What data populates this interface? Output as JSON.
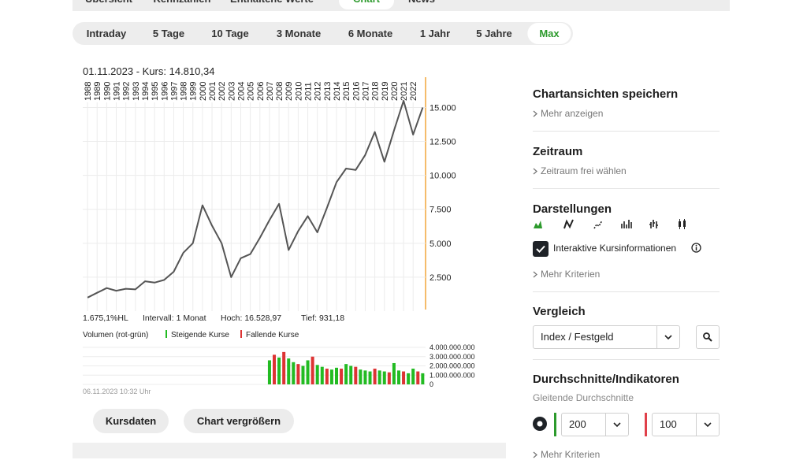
{
  "top_tabs": [
    {
      "label": "Übersicht"
    },
    {
      "label": "Kennzahlen"
    },
    {
      "label": "Enthaltene Werte"
    },
    {
      "label": "Chart",
      "active": true
    },
    {
      "label": "News"
    }
  ],
  "range_tabs": [
    {
      "label": "Intraday"
    },
    {
      "label": "5 Tage"
    },
    {
      "label": "10 Tage"
    },
    {
      "label": "3 Monate"
    },
    {
      "label": "6 Monate"
    },
    {
      "label": "1 Jahr"
    },
    {
      "label": "5 Jahre"
    },
    {
      "label": "Max",
      "active": true
    }
  ],
  "chart_data": [
    {
      "type": "line",
      "title": "01.11.2023  -  Kurs: 14.810,34",
      "x": [
        1988,
        1989,
        1990,
        1991,
        1992,
        1993,
        1994,
        1995,
        1996,
        1997,
        1998,
        1999,
        2000,
        2001,
        2002,
        2003,
        2004,
        2005,
        2006,
        2007,
        2008,
        2009,
        2010,
        2011,
        2012,
        2013,
        2014,
        2015,
        2016,
        2017,
        2018,
        2019,
        2020,
        2021,
        2022,
        2023
      ],
      "values": [
        1000,
        1350,
        1700,
        1500,
        1650,
        1600,
        2200,
        2100,
        2300,
        2900,
        4300,
        5000,
        7800,
        6300,
        5000,
        2500,
        3900,
        4200,
        5400,
        6700,
        7900,
        4500,
        5900,
        7000,
        5800,
        7600,
        9500,
        10500,
        10400,
        11500,
        13200,
        11000,
        13300,
        15500,
        13000,
        15000
      ],
      "color": "#555555",
      "xlim": [
        1987.5,
        2023.3
      ],
      "xticks": [
        1988,
        1989,
        1990,
        1991,
        1992,
        1993,
        1994,
        1995,
        1996,
        1997,
        1998,
        1999,
        2000,
        2001,
        2002,
        2003,
        2004,
        2005,
        2006,
        2007,
        2008,
        2009,
        2010,
        2011,
        2012,
        2013,
        2014,
        2015,
        2016,
        2017,
        2018,
        2019,
        2020,
        2021,
        2022
      ],
      "ylim": [
        0,
        17000
      ],
      "yticks": [
        {
          "value": 2500,
          "label": "2.500"
        },
        {
          "value": 5000,
          "label": "5.000"
        },
        {
          "value": 7500,
          "label": "7.500"
        },
        {
          "value": 10000,
          "label": "10.000"
        },
        {
          "value": 12500,
          "label": "12.500"
        },
        {
          "value": 15000,
          "label": "15.000"
        }
      ],
      "grid": true,
      "stats": [
        "1.675,1%HL",
        "Intervall: 1 Monat",
        "Hoch: 16.528,97",
        "Tief: 931,18"
      ]
    },
    {
      "type": "bar",
      "title": "Volumen (rot-grün)",
      "x": [
        2007.0,
        2007.5,
        2008.0,
        2008.5,
        2009.0,
        2009.5,
        2010.0,
        2010.5,
        2011.0,
        2011.5,
        2012.0,
        2012.5,
        2013.0,
        2013.5,
        2014.0,
        2014.5,
        2015.0,
        2015.5,
        2016.0,
        2016.5,
        2017.0,
        2017.5,
        2018.0,
        2018.5,
        2019.0,
        2019.5,
        2020.0,
        2020.5,
        2021.0,
        2021.5,
        2022.0,
        2022.5,
        2023.0
      ],
      "series": [
        {
          "name": "Steigende Kurse",
          "color": "#22bb22",
          "values": [
            2600000000,
            null,
            2900000000,
            null,
            2800000000,
            2400000000,
            null,
            2000000000,
            2600000000,
            null,
            2100000000,
            1900000000,
            null,
            1600000000,
            1800000000,
            null,
            2200000000,
            2000000000,
            null,
            1600000000,
            1500000000,
            1400000000,
            null,
            1500000000,
            1400000000,
            null,
            2300000000,
            1500000000,
            null,
            1200000000,
            1700000000,
            null,
            1200000000
          ]
        },
        {
          "name": "Fallende Kurse",
          "color": "#dd3333",
          "values": [
            null,
            3200000000,
            null,
            3500000000,
            null,
            null,
            2200000000,
            null,
            null,
            3000000000,
            null,
            null,
            1700000000,
            null,
            null,
            1700000000,
            null,
            null,
            1900000000,
            null,
            null,
            null,
            1700000000,
            null,
            null,
            1300000000,
            null,
            null,
            1400000000,
            null,
            null,
            1400000000,
            null
          ]
        }
      ],
      "xlim": [
        1987.5,
        2023.3
      ],
      "ylim": [
        0,
        4000000000
      ],
      "yticks": [
        0,
        {
          "value": 1000000000,
          "label": "1.000.000.000"
        },
        {
          "value": 2000000000,
          "label": "2.000.000.000"
        },
        {
          "value": 3000000000,
          "label": "3.000.000.000"
        },
        {
          "value": 4000000000,
          "label": "4.000.000.000"
        }
      ],
      "grid": true
    }
  ],
  "timestamp": "06.11.2023 10:32 Uhr",
  "buttons": [
    "Kursdaten",
    "Chart vergrößern"
  ],
  "sidebar": {
    "save": {
      "title": "Chartansichten speichern",
      "link": "Mehr anzeigen"
    },
    "period": {
      "title": "Zeitraum",
      "link": "Zeitraum frei wählen"
    },
    "display": {
      "title": "Darstellungen",
      "checkbox": "Interaktive Kursinformationen",
      "link": "Mehr Kriterien"
    },
    "compare": {
      "title": "Vergleich",
      "select": "Index / Festgeld"
    },
    "indicators": {
      "title": "Durchschnitte/Indikatoren",
      "subtitle": "Gleitende Durchschnitte",
      "select_1": "200",
      "select_2": "100",
      "link": "Mehr Kriterien"
    }
  }
}
